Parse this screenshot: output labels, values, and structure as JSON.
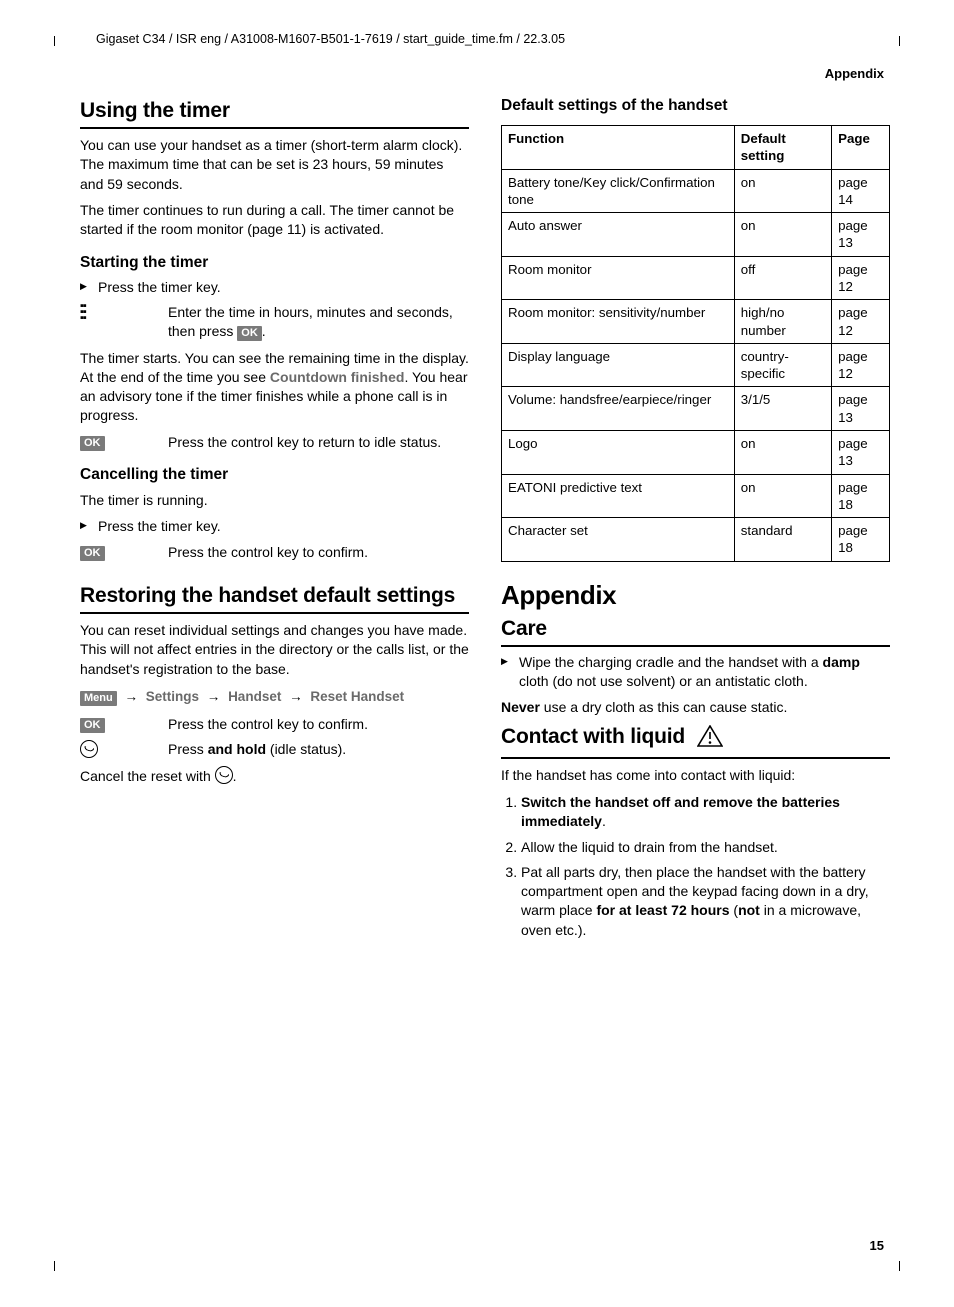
{
  "header_path": "Gigaset C34 / ISR eng / A31008-M1607-B501-1-7619 / start_guide_time.fm / 22.3.05",
  "running_header": "Appendix",
  "page_number": "15",
  "left": {
    "h_timer": "Using the timer",
    "p_timer1": "You can use your handset as a timer (short-term alarm clock). The maximum time that can be set is 23 hours, 59 minutes and 59 seconds.",
    "p_timer2": "The timer continues to run during a call. The timer cannot be started if the room monitor (page 11) is activated.",
    "h_start": "Starting the timer",
    "li_press_timer": "Press the timer key.",
    "enter_time": "Enter the time in hours, minutes and seconds, then press ",
    "ok_label": "OK",
    "p_start1a": "The timer starts. You can see the remaining time in the display. At the end of the time you see ",
    "countdown_finished": "Countdown finished",
    "p_start1b": ". You hear an advisory tone if the timer finishes while a phone call is in progress.",
    "press_return": "Press the control key to return to idle status.",
    "h_cancel": "Cancelling the timer",
    "p_running": "The timer is running.",
    "press_confirm": "Press the control key to confirm.",
    "h_restore": "Restoring the handset default settings",
    "p_restore": "You can reset individual settings and changes you have made. This will not affect entries in the directory or the calls list, or the handset's registration to the base.",
    "menu_label": "Menu",
    "menu_settings": "Settings",
    "menu_handset": "Handset",
    "menu_reset": "Reset Handset",
    "press_hold_a": "Press ",
    "press_hold_b": "and hold",
    "press_hold_c": " (idle status).",
    "cancel_reset": "Cancel the reset with "
  },
  "right": {
    "h_defaults": "Default settings of the handset",
    "table": {
      "headers": [
        "Function",
        "Default setting",
        "Page"
      ],
      "rows": [
        [
          "Battery tone/Key click/Confirmation tone",
          "on",
          "page 14"
        ],
        [
          "Auto answer",
          "on",
          "page 13"
        ],
        [
          "Room monitor",
          "off",
          "page 12"
        ],
        [
          "Room monitor: sensitivity/number",
          "high/no number",
          "page 12"
        ],
        [
          "Display language",
          "country-specific",
          "page 12"
        ],
        [
          "Volume: handsfree/earpiece/ringer",
          "3/1/5",
          "page 13"
        ],
        [
          "Logo",
          "on",
          "page 13"
        ],
        [
          "EATONI predictive text",
          "on",
          "page 18"
        ],
        [
          "Character set",
          "standard",
          "page 18"
        ]
      ]
    },
    "h_appendix": "Appendix",
    "h_care": "Care",
    "care_li_a": "Wipe the charging cradle and the handset with a ",
    "care_li_b": "damp",
    "care_li_c": " cloth (do not use solvent) or an antistatic cloth.",
    "never": "Never",
    "never_txt": " use a dry cloth as this can cause static.",
    "h_liquid": "Contact with liquid",
    "liquid_intro": "If the handset has come into contact with liquid:",
    "ol1": "Switch the handset off and remove the batteries immediately",
    "ol2": "Allow the liquid to drain from the handset.",
    "ol3a": "Pat all parts dry, then place the handset with the battery compartment open and the keypad facing down in a dry, warm place ",
    "ol3b": "for at least 72 hours",
    "ol3c": " (",
    "ol3d": "not",
    "ol3e": " in a microwave, oven etc.)."
  }
}
